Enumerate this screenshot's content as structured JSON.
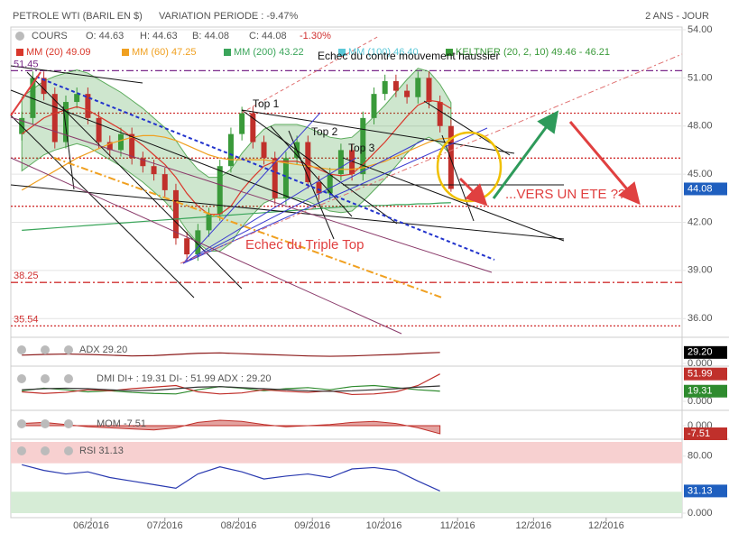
{
  "chart_data": [
    {
      "type": "candlestick",
      "title": "PETROLE WTI (BARIL EN $)",
      "subtitle": "VARIATION PERIODE : -9.47%",
      "period": "2 ANS - JOUR",
      "quote": [
        "COURS",
        "O: 44.63",
        "H: 44.63",
        "B: 44.08",
        "C: 44.08"
      ],
      "change": "-1.30%",
      "x": [
        1,
        2,
        3,
        4,
        5,
        6,
        7,
        8,
        9,
        10,
        11,
        12,
        13,
        14,
        15,
        16,
        17,
        18,
        19,
        20,
        21,
        22,
        23,
        24,
        25,
        26,
        27,
        28,
        29,
        30,
        31,
        32,
        33,
        34,
        35,
        36,
        37,
        38,
        39,
        40
      ],
      "open": [
        47.5,
        48.5,
        51.0,
        50.0,
        47.0,
        49.5,
        50.0,
        48.5,
        47.0,
        46.5,
        47.5,
        46.0,
        45.5,
        45.0,
        44.0,
        41.0,
        40.0,
        41.5,
        42.5,
        45.5,
        47.5,
        48.8,
        47.0,
        46.0,
        43.5,
        46.0,
        47.0,
        44.5,
        43.8,
        45.0,
        46.5,
        45.0,
        48.5,
        50.0,
        50.8,
        50.2,
        49.8,
        51.0,
        49.5,
        48.0
      ],
      "high": [
        48.9,
        51.4,
        51.4,
        50.4,
        49.9,
        50.4,
        50.4,
        48.9,
        47.4,
        47.9,
        47.9,
        46.4,
        45.9,
        45.4,
        44.4,
        41.4,
        41.9,
        42.9,
        45.9,
        47.9,
        49.2,
        49.2,
        47.4,
        46.4,
        46.4,
        47.4,
        47.4,
        44.9,
        45.4,
        46.9,
        46.9,
        48.9,
        50.4,
        51.2,
        51.2,
        50.6,
        51.4,
        51.4,
        49.9,
        48.4
      ],
      "low": [
        47.1,
        48.1,
        49.6,
        46.6,
        46.6,
        49.1,
        48.1,
        46.6,
        46.1,
        46.1,
        45.6,
        45.1,
        44.6,
        43.6,
        40.6,
        39.6,
        39.6,
        41.1,
        42.1,
        45.1,
        47.1,
        46.6,
        45.6,
        43.1,
        43.1,
        45.6,
        44.1,
        43.4,
        43.4,
        44.6,
        44.6,
        44.6,
        48.1,
        49.6,
        49.8,
        49.4,
        49.4,
        49.1,
        47.6,
        43.9
      ],
      "close": [
        48.5,
        51.0,
        50.0,
        47.0,
        49.5,
        50.0,
        48.5,
        47.0,
        46.5,
        47.5,
        46.0,
        45.5,
        45.0,
        44.0,
        41.0,
        40.0,
        41.5,
        42.5,
        45.5,
        47.5,
        48.8,
        47.0,
        46.0,
        43.5,
        46.0,
        47.0,
        44.5,
        43.8,
        45.0,
        46.5,
        45.0,
        48.5,
        50.0,
        50.8,
        50.2,
        49.8,
        51.0,
        49.5,
        48.0,
        44.08
      ],
      "up_color": "#3a9a3a",
      "down_color": "#c0302b",
      "xlim": [
        0,
        61
      ],
      "xticks": [
        {
          "value": 7.3,
          "label": "06/2016"
        },
        {
          "value": 14,
          "label": "07/2016"
        },
        {
          "value": 20.7,
          "label": "08/2016"
        },
        {
          "value": 27.4,
          "label": "09/2016"
        },
        {
          "value": 33.9,
          "label": "10/2016"
        },
        {
          "value": 40.6,
          "label": "11/2016"
        },
        {
          "value": 47.5,
          "label": "12/2016"
        },
        {
          "value": 54.1,
          "label": "12/2016"
        }
      ],
      "ylim": [
        35,
        54
      ],
      "yticks": [
        {
          "value": 36,
          "label": "36.00"
        },
        {
          "value": 39,
          "label": "39.00"
        },
        {
          "value": 42,
          "label": "42.00"
        },
        {
          "value": 45,
          "label": "45.00"
        },
        {
          "value": 48,
          "label": "48.00"
        },
        {
          "value": 51,
          "label": "51.00"
        },
        {
          "value": 54,
          "label": "54.00"
        }
      ],
      "grid": true,
      "series": [
        {
          "name": "MM (20) 49.09",
          "color": "#d9372b",
          "values": [
            47.5,
            48,
            48.5,
            48.8,
            49,
            49.2,
            49,
            48.6,
            48.2,
            47.8,
            47.3,
            46.8,
            46.2,
            45.6,
            44.8,
            43.8,
            43,
            42.5,
            42.5,
            43,
            44,
            44.8,
            45.5,
            45.8,
            45.8,
            45.8,
            45.6,
            45.3,
            45,
            44.9,
            45,
            45.6,
            46.3,
            47,
            47.8,
            48.6,
            49.3,
            49.6,
            49.5,
            49.09
          ]
        },
        {
          "name": "MM (60) 47.25",
          "color": "#f0a020",
          "values": [
            44.0,
            44.4,
            44.8,
            45.2,
            45.6,
            46.0,
            46.3,
            46.6,
            46.9,
            47.1,
            47.3,
            47.4,
            47.4,
            47.3,
            47.1,
            46.8,
            46.5,
            46.2,
            46.0,
            45.9,
            45.9,
            45.9,
            45.9,
            45.8,
            45.7,
            45.6,
            45.5,
            45.4,
            45.3,
            45.3,
            45.3,
            45.4,
            45.6,
            45.8,
            46.1,
            46.4,
            46.7,
            47.0,
            47.2,
            47.25
          ]
        },
        {
          "name": "MM (200) 43.22",
          "color": "#3aa55a",
          "values": [
            41.5,
            41.55,
            41.6,
            41.65,
            41.7,
            41.75,
            41.8,
            41.85,
            41.9,
            41.95,
            42.0,
            42.05,
            42.1,
            42.15,
            42.2,
            42.25,
            42.3,
            42.35,
            42.4,
            42.45,
            42.5,
            42.55,
            42.6,
            42.65,
            42.7,
            42.75,
            42.8,
            42.85,
            42.9,
            42.95,
            43.0,
            43.0,
            43.05,
            43.05,
            43.1,
            43.1,
            43.15,
            43.15,
            43.2,
            43.22
          ]
        }
      ],
      "legend_extra": [
        {
          "name": "MM (100) 46.40",
          "color": "#5bc8d8"
        },
        {
          "name": "KELTNER (20, 2, 10) 49.46 - 46.21",
          "color": "#3a9a3a"
        }
      ],
      "band": {
        "color": "#3a9a3a",
        "upper": [
          49.8,
          50.3,
          50.8,
          51.1,
          51.3,
          51.5,
          51.3,
          50.9,
          50.5,
          50.1,
          49.6,
          49.1,
          48.5,
          47.9,
          47.1,
          46.1,
          45.3,
          44.8,
          44.8,
          45.3,
          46.3,
          47.1,
          47.8,
          48.1,
          48.1,
          48.1,
          47.9,
          47.6,
          47.3,
          47.2,
          47.3,
          47.9,
          48.6,
          49.3,
          50.1,
          50.9,
          51.6,
          51.4,
          50.6,
          49.46
        ],
        "lower": [
          45.2,
          45.7,
          46.2,
          46.5,
          46.7,
          46.9,
          46.7,
          46.3,
          45.9,
          45.5,
          45.0,
          44.5,
          43.9,
          43.3,
          42.5,
          41.5,
          40.7,
          40.2,
          40.2,
          40.7,
          41.7,
          42.5,
          43.2,
          43.5,
          43.5,
          43.5,
          43.3,
          43.0,
          42.7,
          42.6,
          42.7,
          43.3,
          44.0,
          44.7,
          45.5,
          46.3,
          47.0,
          47.3,
          46.9,
          46.21
        ]
      },
      "levels": [
        {
          "value": 51.45,
          "label": "51.45",
          "color": "#7a2a8a",
          "dash": "8 3 2 3"
        },
        {
          "value": 38.25,
          "label": "38.25",
          "color": "#d03030",
          "dash": "8 3 2 3"
        },
        {
          "value": 35.54,
          "label": "35.54",
          "color": "#d03030",
          "dash": "2 2"
        },
        {
          "value": 48.8,
          "color": "#d03030",
          "dash": "2 2"
        },
        {
          "value": 46,
          "color": "#d03030",
          "dash": "2 2"
        },
        {
          "value": 43,
          "color": "#d03030",
          "dash": "2 2"
        }
      ],
      "badges": [
        {
          "value": 44.08,
          "color": "#1f5fbf"
        }
      ],
      "annotations": [
        "Top 1",
        "Top 2",
        "Top 3",
        "Echec du contre mouvement haussier",
        "Echec du Triple Top",
        "...VERS UN ETE ???"
      ]
    },
    {
      "type": "line",
      "title": "ADX 29.20",
      "x": [
        1,
        3,
        5,
        7,
        9,
        11,
        13,
        15,
        17,
        19,
        21,
        23,
        25,
        27,
        29,
        31,
        33,
        35,
        37,
        39
      ],
      "xlim": [
        0,
        61
      ],
      "ylim": [
        0,
        60
      ],
      "yticks": [
        {
          "value": 0,
          "label": "0.000"
        }
      ],
      "series": [
        {
          "color": "#8b1a1a",
          "values": [
            22,
            24,
            25,
            24,
            22,
            20,
            21,
            24,
            27,
            28,
            26,
            24,
            22,
            20,
            19,
            20,
            22,
            24,
            27,
            29.2
          ]
        }
      ],
      "badges": [
        {
          "value": 29.2,
          "label": "29.20",
          "color": "#000000"
        }
      ]
    },
    {
      "type": "line",
      "title": "DMI DI+ : 19.31 DI- : 51.99 ADX : 29.20",
      "x": [
        1,
        3,
        5,
        7,
        9,
        11,
        13,
        15,
        17,
        19,
        21,
        23,
        25,
        27,
        29,
        31,
        33,
        35,
        37,
        39
      ],
      "xlim": [
        0,
        61
      ],
      "ylim": [
        0,
        60
      ],
      "yticks": [
        {
          "value": 0,
          "label": "0.000"
        }
      ],
      "series": [
        {
          "color": "#2e8b2e",
          "values": [
            20,
            25,
            22,
            18,
            20,
            17,
            15,
            14,
            22,
            28,
            25,
            20,
            24,
            26,
            22,
            28,
            30,
            26,
            22,
            19.31
          ]
        },
        {
          "color": "#c0302b",
          "values": [
            18,
            15,
            17,
            22,
            20,
            24,
            27,
            30,
            18,
            14,
            16,
            22,
            19,
            17,
            20,
            13,
            14,
            18,
            30,
            51.99
          ]
        },
        {
          "color": "#333333",
          "values": [
            22,
            24,
            25,
            24,
            22,
            20,
            21,
            24,
            27,
            28,
            26,
            24,
            22,
            20,
            19,
            20,
            22,
            24,
            27,
            29.2
          ]
        }
      ],
      "badges": [
        {
          "value": 51.99,
          "color": "#c0302b"
        },
        {
          "value": 19.31,
          "color": "#2e8b2e"
        }
      ]
    },
    {
      "type": "area",
      "title": "MOM -7.51",
      "x": [
        1,
        3,
        5,
        7,
        9,
        11,
        13,
        15,
        17,
        19,
        21,
        23,
        25,
        27,
        29,
        31,
        33,
        35,
        37,
        39
      ],
      "xlim": [
        0,
        61
      ],
      "ylim": [
        -10,
        10
      ],
      "yticks": [
        {
          "value": 0,
          "label": "0.000"
        }
      ],
      "series": [
        {
          "color": "#c0302b",
          "values": [
            2,
            3,
            1,
            -1,
            -2,
            -3,
            -4,
            -2,
            3,
            5,
            4,
            1,
            -1,
            0,
            1,
            3,
            4,
            2,
            -2,
            -7.51
          ]
        }
      ],
      "badges": [
        {
          "value": -7.51,
          "color": "#c0302b"
        }
      ]
    },
    {
      "type": "line",
      "title": "RSI 31.13",
      "x": [
        1,
        3,
        5,
        7,
        9,
        11,
        13,
        15,
        17,
        19,
        21,
        23,
        25,
        27,
        29,
        31,
        33,
        35,
        37,
        39
      ],
      "xlim": [
        0,
        61
      ],
      "ylim": [
        0,
        100
      ],
      "yticks": [
        {
          "value": 80,
          "label": "80.00"
        },
        {
          "value": 0,
          "label": "0.000"
        }
      ],
      "bands": [
        {
          "from": 70,
          "to": 100,
          "color": "#f7d0d0"
        },
        {
          "from": 0,
          "to": 30,
          "color": "#d6ecd6"
        }
      ],
      "series": [
        {
          "color": "#2a3ab0",
          "values": [
            68,
            60,
            55,
            58,
            50,
            45,
            40,
            35,
            55,
            65,
            58,
            48,
            52,
            55,
            50,
            62,
            64,
            60,
            45,
            31.13
          ]
        }
      ],
      "badges": [
        {
          "value": 31.13,
          "color": "#1f5fbf"
        }
      ]
    }
  ]
}
